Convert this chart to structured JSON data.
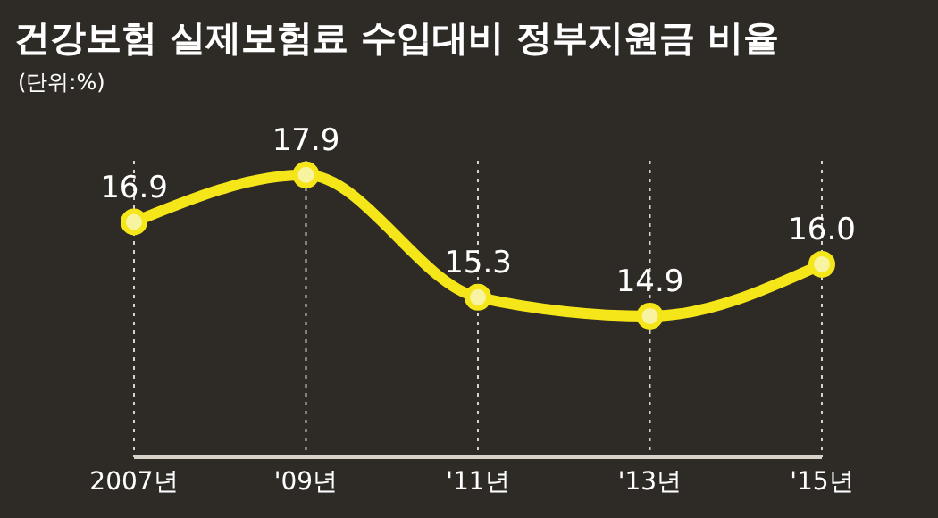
{
  "chart_data": {
    "type": "line",
    "title": "건강보험 실제보험료 수입대비 정부지원금 비율",
    "subtitle": "(단위:%)",
    "categories": [
      "2007년",
      "'09년",
      "'11년",
      "'13년",
      "'15년"
    ],
    "series": [
      {
        "color": "#f5e61a",
        "values": [
          16.9,
          17.9,
          15.3,
          14.9,
          16.0
        ],
        "value_labels": [
          "16.9",
          "17.9",
          "15.3",
          "14.9",
          "16.0"
        ]
      }
    ],
    "marker": "circle",
    "line_style": "solid",
    "grid": "x",
    "tick_labels": "x"
  }
}
